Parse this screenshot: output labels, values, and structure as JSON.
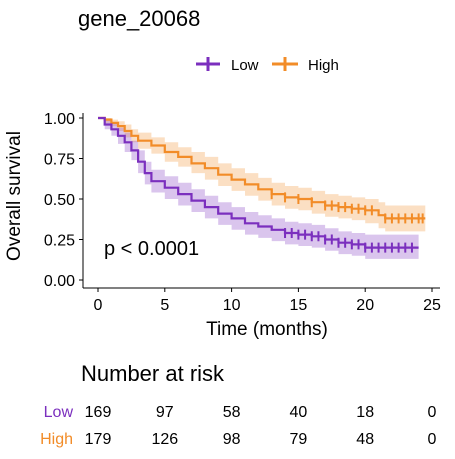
{
  "chart_data": {
    "type": "line",
    "subtype": "kaplan-meier",
    "title": "gene_20068",
    "xlabel": "Time (months)",
    "ylabel": "Overall survival",
    "xlim": [
      0,
      25
    ],
    "ylim": [
      0,
      1
    ],
    "xticks": [
      "0",
      "5",
      "10",
      "15",
      "20",
      "25"
    ],
    "yticks": [
      "0.00",
      "0.25",
      "0.50",
      "0.75",
      "1.00"
    ],
    "annotation": "p < 0.0001",
    "legend_position": "top",
    "series": [
      {
        "name": "Low",
        "color": "#7B2FBE",
        "steps": [
          [
            0,
            1.0
          ],
          [
            0.5,
            0.96
          ],
          [
            1,
            0.93
          ],
          [
            1.5,
            0.89
          ],
          [
            2,
            0.85
          ],
          [
            2.5,
            0.8
          ],
          [
            3,
            0.73
          ],
          [
            3.5,
            0.66
          ],
          [
            4,
            0.61
          ],
          [
            5,
            0.57
          ],
          [
            6,
            0.53
          ],
          [
            7,
            0.49
          ],
          [
            8,
            0.45
          ],
          [
            9,
            0.41
          ],
          [
            10,
            0.38
          ],
          [
            11,
            0.35
          ],
          [
            12,
            0.33
          ],
          [
            13,
            0.31
          ],
          [
            14,
            0.29
          ],
          [
            15,
            0.28
          ],
          [
            16,
            0.27
          ],
          [
            17,
            0.25
          ],
          [
            18,
            0.23
          ],
          [
            19,
            0.22
          ],
          [
            20,
            0.2
          ],
          [
            24,
            0.2
          ]
        ],
        "ci_low": [
          [
            0,
            1.0
          ],
          [
            0.5,
            0.93
          ],
          [
            1,
            0.89
          ],
          [
            1.5,
            0.84
          ],
          [
            2,
            0.79
          ],
          [
            2.5,
            0.74
          ],
          [
            3,
            0.66
          ],
          [
            3.5,
            0.59
          ],
          [
            4,
            0.54
          ],
          [
            5,
            0.5
          ],
          [
            6,
            0.46
          ],
          [
            7,
            0.42
          ],
          [
            8,
            0.38
          ],
          [
            9,
            0.34
          ],
          [
            10,
            0.31
          ],
          [
            11,
            0.28
          ],
          [
            12,
            0.26
          ],
          [
            13,
            0.24
          ],
          [
            14,
            0.22
          ],
          [
            15,
            0.21
          ],
          [
            16,
            0.2
          ],
          [
            17,
            0.18
          ],
          [
            18,
            0.16
          ],
          [
            19,
            0.15
          ],
          [
            20,
            0.13
          ],
          [
            24,
            0.13
          ]
        ],
        "ci_high": [
          [
            0,
            1.0
          ],
          [
            0.5,
            0.99
          ],
          [
            1,
            0.97
          ],
          [
            1.5,
            0.94
          ],
          [
            2,
            0.91
          ],
          [
            2.5,
            0.86
          ],
          [
            3,
            0.8
          ],
          [
            3.5,
            0.73
          ],
          [
            4,
            0.68
          ],
          [
            5,
            0.64
          ],
          [
            6,
            0.6
          ],
          [
            7,
            0.56
          ],
          [
            8,
            0.52
          ],
          [
            9,
            0.48
          ],
          [
            10,
            0.45
          ],
          [
            11,
            0.42
          ],
          [
            12,
            0.4
          ],
          [
            13,
            0.38
          ],
          [
            14,
            0.36
          ],
          [
            15,
            0.35
          ],
          [
            16,
            0.34
          ],
          [
            17,
            0.32
          ],
          [
            18,
            0.3
          ],
          [
            19,
            0.29
          ],
          [
            20,
            0.28
          ],
          [
            24,
            0.28
          ]
        ],
        "censor_times": [
          19,
          19.5,
          20,
          20.5,
          21,
          21.5,
          22,
          22.5,
          23,
          23.5,
          16.5,
          17,
          17.5,
          18,
          18.5,
          14,
          14.5,
          15,
          15.5,
          16
        ],
        "risk": [
          "169",
          "97",
          "58",
          "40",
          "18",
          "0"
        ]
      },
      {
        "name": "High",
        "color": "#F28C28",
        "steps": [
          [
            0,
            1.0
          ],
          [
            0.5,
            0.99
          ],
          [
            1,
            0.97
          ],
          [
            1.5,
            0.95
          ],
          [
            2,
            0.92
          ],
          [
            2.5,
            0.89
          ],
          [
            3,
            0.86
          ],
          [
            4,
            0.83
          ],
          [
            5,
            0.79
          ],
          [
            6,
            0.76
          ],
          [
            7,
            0.72
          ],
          [
            8,
            0.69
          ],
          [
            9,
            0.65
          ],
          [
            10,
            0.62
          ],
          [
            11,
            0.59
          ],
          [
            12,
            0.56
          ],
          [
            13,
            0.53
          ],
          [
            14,
            0.51
          ],
          [
            15,
            0.5
          ],
          [
            16,
            0.48
          ],
          [
            17,
            0.46
          ],
          [
            18,
            0.45
          ],
          [
            19,
            0.44
          ],
          [
            20,
            0.43
          ],
          [
            21,
            0.4
          ],
          [
            21.5,
            0.38
          ],
          [
            24.5,
            0.38
          ]
        ],
        "ci_low": [
          [
            0,
            1.0
          ],
          [
            0.5,
            0.97
          ],
          [
            1,
            0.95
          ],
          [
            1.5,
            0.92
          ],
          [
            2,
            0.88
          ],
          [
            2.5,
            0.85
          ],
          [
            3,
            0.81
          ],
          [
            4,
            0.78
          ],
          [
            5,
            0.73
          ],
          [
            6,
            0.7
          ],
          [
            7,
            0.66
          ],
          [
            8,
            0.62
          ],
          [
            9,
            0.58
          ],
          [
            10,
            0.55
          ],
          [
            11,
            0.52
          ],
          [
            12,
            0.49
          ],
          [
            13,
            0.46
          ],
          [
            14,
            0.44
          ],
          [
            15,
            0.43
          ],
          [
            16,
            0.41
          ],
          [
            17,
            0.39
          ],
          [
            18,
            0.38
          ],
          [
            19,
            0.37
          ],
          [
            20,
            0.35
          ],
          [
            21,
            0.32
          ],
          [
            21.5,
            0.3
          ],
          [
            24.5,
            0.3
          ]
        ],
        "ci_high": [
          [
            0,
            1.0
          ],
          [
            0.5,
            1.0
          ],
          [
            1,
            0.99
          ],
          [
            1.5,
            0.98
          ],
          [
            2,
            0.96
          ],
          [
            2.5,
            0.93
          ],
          [
            3,
            0.91
          ],
          [
            4,
            0.88
          ],
          [
            5,
            0.85
          ],
          [
            6,
            0.82
          ],
          [
            7,
            0.79
          ],
          [
            8,
            0.76
          ],
          [
            9,
            0.72
          ],
          [
            10,
            0.69
          ],
          [
            11,
            0.66
          ],
          [
            12,
            0.63
          ],
          [
            13,
            0.6
          ],
          [
            14,
            0.58
          ],
          [
            15,
            0.57
          ],
          [
            16,
            0.55
          ],
          [
            17,
            0.53
          ],
          [
            18,
            0.52
          ],
          [
            19,
            0.51
          ],
          [
            20,
            0.5
          ],
          [
            21,
            0.48
          ],
          [
            21.5,
            0.46
          ],
          [
            24.5,
            0.46
          ]
        ],
        "censor_times": [
          17,
          17.5,
          18,
          18.5,
          19,
          19.5,
          20,
          20.5,
          21.5,
          22,
          22.5,
          23,
          23.5,
          24,
          24.3,
          13,
          14,
          15,
          16
        ],
        "risk": [
          "179",
          "126",
          "98",
          "79",
          "48",
          "0"
        ]
      }
    ],
    "risk_table": {
      "title": "Number at risk",
      "times": [
        0,
        5,
        10,
        15,
        20,
        25
      ]
    }
  }
}
